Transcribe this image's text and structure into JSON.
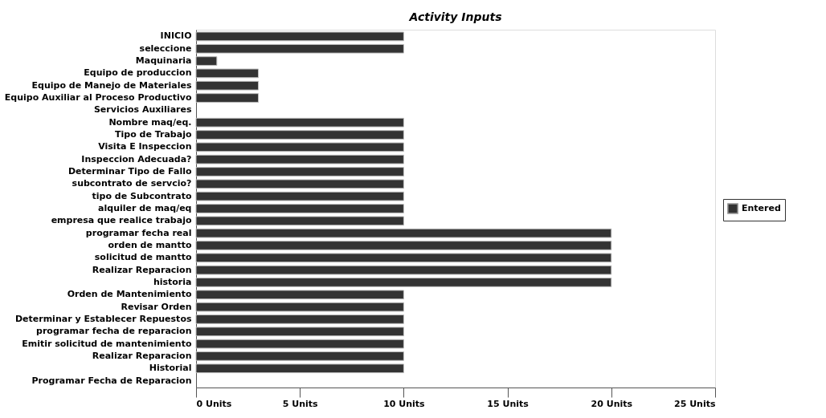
{
  "chart_data": {
    "type": "bar",
    "title": "Activity Inputs",
    "orientation": "horizontal",
    "categories": [
      "INICIO",
      "seleccione",
      "Maquinaria",
      "Equipo de produccion",
      "Equipo de Manejo de Materiales",
      "Equipo Auxiliar al Proceso Productivo",
      "Servicios Auxiliares",
      "Nombre maq/eq.",
      "Tipo de Trabajo",
      "Visita E Inspeccion",
      "Inspeccion Adecuada?",
      "Determinar Tipo de Fallo",
      "subcontrato de servcio?",
      "tipo de Subcontrato",
      "alquiler de maq/eq",
      "empresa que realice trabajo",
      "programar fecha real",
      "orden de mantto",
      "solicitud de mantto",
      "Realizar Reparacion",
      "historia",
      "Orden de Mantenimiento",
      "Revisar Orden",
      "Determinar  y Establecer Repuestos",
      "programar fecha de reparacion",
      "Emitir solicitud de mantenimiento",
      "Realizar Reparacion",
      "Historial",
      "Programar Fecha de Reparacion"
    ],
    "series": [
      {
        "name": "Entered",
        "color": "#333333",
        "values": [
          10,
          10,
          1,
          3,
          3,
          3,
          null,
          10,
          10,
          10,
          10,
          10,
          10,
          10,
          10,
          10,
          20,
          20,
          20,
          20,
          20,
          10,
          10,
          10,
          10,
          10,
          10,
          10,
          null
        ]
      }
    ],
    "xlim": [
      0,
      25
    ],
    "xticks": [
      {
        "value": 0,
        "label": "0 Units"
      },
      {
        "value": 5,
        "label": "5 Units"
      },
      {
        "value": 10,
        "label": "10 Units"
      },
      {
        "value": 15,
        "label": "15 Units"
      },
      {
        "value": 20,
        "label": "20 Units"
      },
      {
        "value": 25,
        "label": "25 Units"
      }
    ],
    "legend": "right",
    "grid": false
  }
}
